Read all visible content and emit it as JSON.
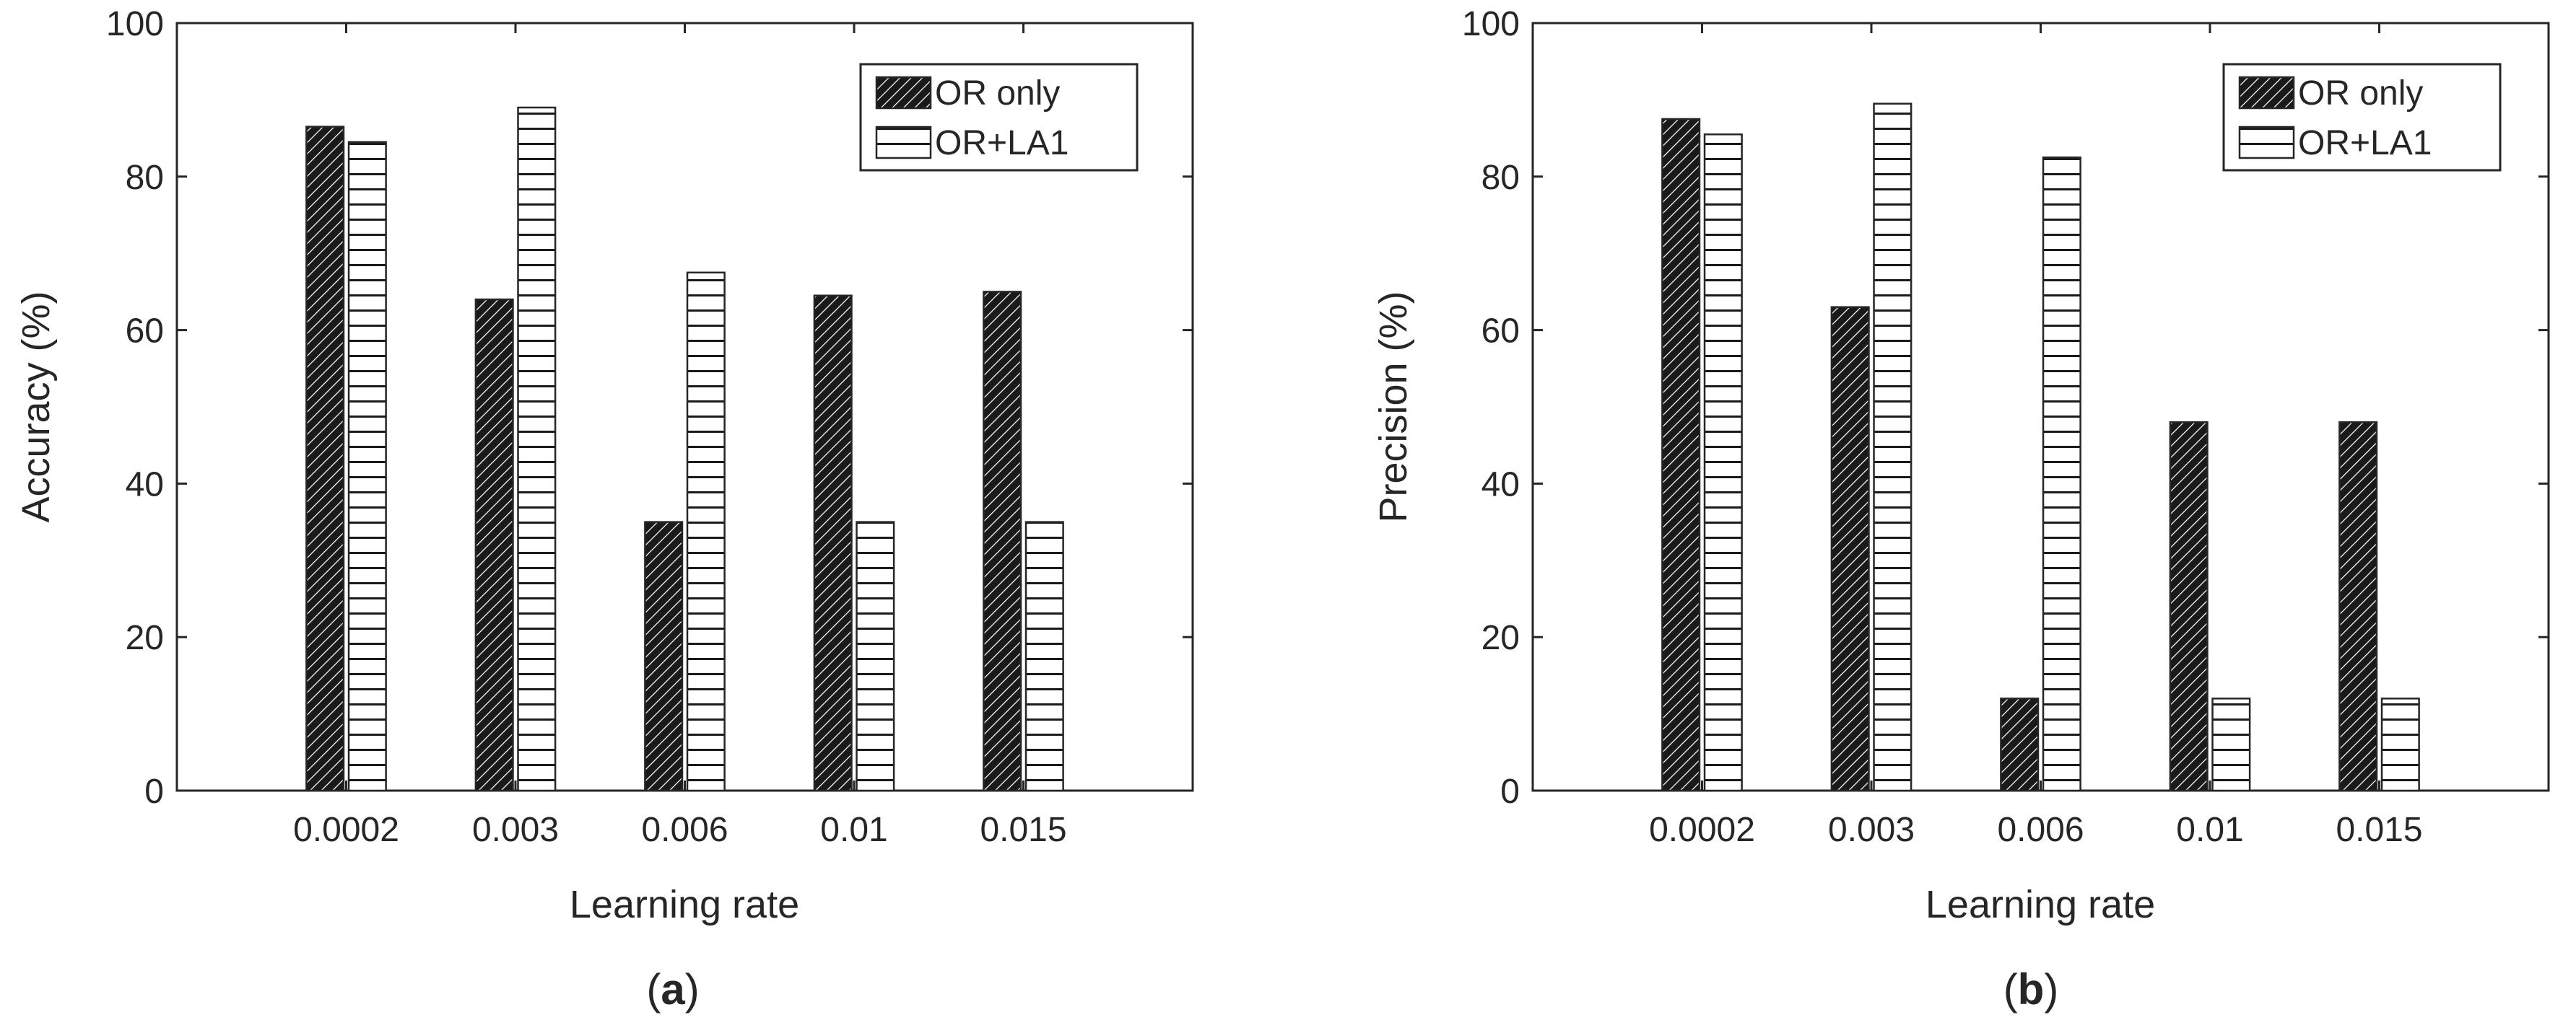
{
  "chart_data": [
    {
      "type": "bar",
      "caption_letter": "a",
      "categories": [
        "0.0002",
        "0.003",
        "0.006",
        "0.01",
        "0.015"
      ],
      "series": [
        {
          "name": "OR only",
          "pattern": "diagonal-hatch-dark",
          "values": [
            86.5,
            64,
            35,
            64.5,
            65
          ]
        },
        {
          "name": "OR+LA1",
          "pattern": "horizontal-hatch-light",
          "values": [
            84.5,
            89,
            67.5,
            35,
            35
          ]
        }
      ],
      "xlabel": "Learning rate",
      "ylabel": "Accuracy (%)",
      "ylim": [
        0,
        100
      ],
      "yticks": [
        0,
        20,
        40,
        60,
        80,
        100
      ],
      "grid": false,
      "legend_position": "top-right"
    },
    {
      "type": "bar",
      "caption_letter": "b",
      "categories": [
        "0.0002",
        "0.003",
        "0.006",
        "0.01",
        "0.015"
      ],
      "series": [
        {
          "name": "OR only",
          "pattern": "diagonal-hatch-dark",
          "values": [
            87.5,
            63,
            12,
            48,
            48
          ]
        },
        {
          "name": "OR+LA1",
          "pattern": "horizontal-hatch-light",
          "values": [
            85.5,
            89.5,
            82.5,
            12,
            12
          ]
        }
      ],
      "xlabel": "Learning rate",
      "ylabel": "Precision (%)",
      "ylim": [
        0,
        100
      ],
      "yticks": [
        0,
        20,
        40,
        60,
        80,
        100
      ],
      "grid": false,
      "legend_position": "top-right"
    }
  ],
  "colors": {
    "axis": "#262626",
    "dark_bar": "#1a1a1a",
    "light_bar": "#ffffff"
  }
}
